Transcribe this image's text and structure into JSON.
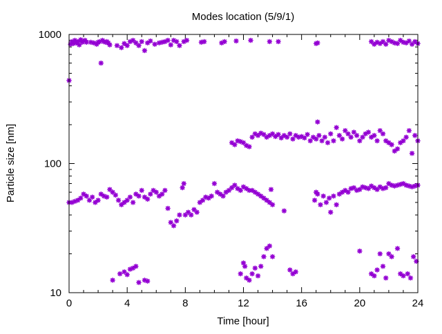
{
  "chart_data": {
    "type": "scatter",
    "title": "Modes location (5/9/1)",
    "xlabel": "Time [hour]",
    "ylabel": "Particle size [nm]",
    "xlim": [
      0,
      24
    ],
    "ylim": [
      10,
      1000
    ],
    "yscale": "log",
    "grid": false,
    "legend": "none",
    "color": "#9400d3",
    "x_ticks": [
      0,
      4,
      8,
      12,
      16,
      20,
      24
    ],
    "y_ticks": [
      10,
      100,
      1000
    ],
    "y_tick_labels": [
      "10",
      "100",
      "1000"
    ],
    "series": [
      {
        "mode": "large",
        "points": [
          [
            0.0,
            440
          ],
          [
            0.1,
            840
          ],
          [
            0.2,
            880
          ],
          [
            0.3,
            850
          ],
          [
            0.4,
            900
          ],
          [
            0.5,
            860
          ],
          [
            0.6,
            880
          ],
          [
            0.7,
            830
          ],
          [
            0.8,
            910
          ],
          [
            0.9,
            870
          ],
          [
            1.0,
            890
          ],
          [
            1.1,
            900
          ],
          [
            1.2,
            870
          ],
          [
            1.5,
            870
          ],
          [
            1.7,
            860
          ],
          [
            1.9,
            840
          ],
          [
            2.0,
            870
          ],
          [
            2.1,
            880
          ],
          [
            2.2,
            600
          ],
          [
            2.3,
            900
          ],
          [
            2.4,
            880
          ],
          [
            2.5,
            870
          ],
          [
            2.6,
            880
          ],
          [
            2.7,
            860
          ],
          [
            2.8,
            830
          ],
          [
            3.3,
            820
          ],
          [
            3.6,
            790
          ],
          [
            3.8,
            850
          ],
          [
            4.0,
            820
          ],
          [
            4.2,
            880
          ],
          [
            4.4,
            900
          ],
          [
            4.6,
            860
          ],
          [
            4.8,
            820
          ],
          [
            5.0,
            880
          ],
          [
            5.2,
            750
          ],
          [
            5.4,
            860
          ],
          [
            5.6,
            890
          ],
          [
            5.9,
            840
          ],
          [
            6.2,
            860
          ],
          [
            6.4,
            870
          ],
          [
            6.6,
            880
          ],
          [
            6.8,
            900
          ],
          [
            7.0,
            830
          ],
          [
            7.2,
            900
          ],
          [
            7.4,
            880
          ],
          [
            7.6,
            820
          ],
          [
            7.9,
            880
          ],
          [
            8.1,
            900
          ],
          [
            9.1,
            870
          ],
          [
            9.3,
            880
          ],
          [
            10.5,
            860
          ],
          [
            10.7,
            880
          ],
          [
            11.5,
            890
          ],
          [
            12.5,
            900
          ],
          [
            13.8,
            880
          ],
          [
            14.4,
            880
          ],
          [
            17.0,
            850
          ],
          [
            17.1,
            860
          ],
          [
            20.8,
            880
          ],
          [
            21.0,
            840
          ],
          [
            21.2,
            870
          ],
          [
            21.4,
            850
          ],
          [
            21.6,
            880
          ],
          [
            21.8,
            840
          ],
          [
            22.0,
            900
          ],
          [
            22.2,
            880
          ],
          [
            22.4,
            860
          ],
          [
            22.6,
            850
          ],
          [
            22.8,
            900
          ],
          [
            23.0,
            870
          ],
          [
            23.2,
            860
          ],
          [
            23.4,
            890
          ],
          [
            23.6,
            840
          ],
          [
            23.8,
            880
          ],
          [
            24.0,
            850
          ]
        ]
      },
      {
        "mode": "upper-middle",
        "points": [
          [
            11.2,
            145
          ],
          [
            11.4,
            140
          ],
          [
            11.6,
            150
          ],
          [
            11.8,
            148
          ],
          [
            12.0,
            145
          ],
          [
            12.2,
            138
          ],
          [
            12.4,
            135
          ],
          [
            12.6,
            160
          ],
          [
            12.8,
            170
          ],
          [
            13.0,
            165
          ],
          [
            13.2,
            172
          ],
          [
            13.4,
            168
          ],
          [
            13.6,
            160
          ],
          [
            13.8,
            165
          ],
          [
            14.0,
            170
          ],
          [
            14.2,
            162
          ],
          [
            14.4,
            168
          ],
          [
            14.6,
            158
          ],
          [
            14.8,
            165
          ],
          [
            15.0,
            160
          ],
          [
            15.2,
            170
          ],
          [
            15.4,
            155
          ],
          [
            15.6,
            165
          ],
          [
            15.8,
            160
          ],
          [
            16.0,
            162
          ],
          [
            16.2,
            158
          ],
          [
            16.4,
            168
          ],
          [
            16.6,
            150
          ],
          [
            16.8,
            160
          ],
          [
            17.0,
            155
          ],
          [
            17.1,
            210
          ],
          [
            17.2,
            165
          ],
          [
            17.4,
            150
          ],
          [
            17.6,
            160
          ],
          [
            17.8,
            145
          ],
          [
            18.0,
            170
          ],
          [
            18.2,
            150
          ],
          [
            18.4,
            190
          ],
          [
            18.6,
            165
          ],
          [
            18.8,
            155
          ],
          [
            19.0,
            180
          ],
          [
            19.2,
            170
          ],
          [
            19.4,
            160
          ],
          [
            19.6,
            175
          ],
          [
            19.8,
            165
          ],
          [
            20.0,
            150
          ],
          [
            20.2,
            160
          ],
          [
            20.4,
            170
          ],
          [
            20.6,
            175
          ],
          [
            20.8,
            160
          ],
          [
            21.0,
            165
          ],
          [
            21.2,
            150
          ],
          [
            21.4,
            180
          ],
          [
            21.6,
            170
          ],
          [
            21.8,
            150
          ],
          [
            22.0,
            145
          ],
          [
            22.2,
            140
          ],
          [
            22.4,
            125
          ],
          [
            22.6,
            130
          ],
          [
            22.8,
            145
          ],
          [
            23.0,
            150
          ],
          [
            23.2,
            160
          ],
          [
            23.4,
            180
          ],
          [
            23.6,
            120
          ],
          [
            23.8,
            165
          ],
          [
            24.0,
            150
          ]
        ]
      },
      {
        "mode": "lower-middle",
        "points": [
          [
            0.0,
            50
          ],
          [
            0.2,
            50
          ],
          [
            0.4,
            51
          ],
          [
            0.6,
            52
          ],
          [
            0.8,
            54
          ],
          [
            1.0,
            58
          ],
          [
            1.2,
            56
          ],
          [
            1.4,
            52
          ],
          [
            1.6,
            55
          ],
          [
            1.8,
            50
          ],
          [
            2.0,
            52
          ],
          [
            2.2,
            58
          ],
          [
            2.4,
            56
          ],
          [
            2.6,
            55
          ],
          [
            2.8,
            63
          ],
          [
            3.0,
            60
          ],
          [
            3.2,
            57
          ],
          [
            3.4,
            52
          ],
          [
            3.6,
            48
          ],
          [
            3.8,
            50
          ],
          [
            4.0,
            52
          ],
          [
            4.2,
            55
          ],
          [
            4.4,
            50
          ],
          [
            4.6,
            58
          ],
          [
            4.8,
            56
          ],
          [
            5.0,
            62
          ],
          [
            5.2,
            55
          ],
          [
            5.4,
            53
          ],
          [
            5.6,
            58
          ],
          [
            5.8,
            62
          ],
          [
            6.0,
            60
          ],
          [
            6.2,
            56
          ],
          [
            6.4,
            58
          ],
          [
            6.6,
            62
          ],
          [
            6.8,
            45
          ],
          [
            7.0,
            35
          ],
          [
            7.2,
            33
          ],
          [
            7.4,
            36
          ],
          [
            7.6,
            40
          ],
          [
            7.8,
            65
          ],
          [
            7.9,
            70
          ],
          [
            8.0,
            40
          ],
          [
            8.2,
            42
          ],
          [
            8.4,
            40
          ],
          [
            8.6,
            44
          ],
          [
            8.8,
            42
          ],
          [
            9.0,
            50
          ],
          [
            9.2,
            52
          ],
          [
            9.4,
            55
          ],
          [
            9.6,
            54
          ],
          [
            9.8,
            56
          ],
          [
            10.0,
            70
          ],
          [
            10.2,
            60
          ],
          [
            10.4,
            58
          ],
          [
            10.6,
            56
          ],
          [
            10.8,
            60
          ],
          [
            11.0,
            62
          ],
          [
            11.2,
            65
          ],
          [
            11.4,
            68
          ],
          [
            11.6,
            64
          ],
          [
            11.8,
            62
          ],
          [
            12.0,
            66
          ],
          [
            12.2,
            64
          ],
          [
            12.4,
            62
          ],
          [
            12.6,
            62
          ],
          [
            12.8,
            60
          ],
          [
            13.0,
            58
          ],
          [
            13.2,
            56
          ],
          [
            13.4,
            54
          ],
          [
            13.6,
            52
          ],
          [
            13.8,
            50
          ],
          [
            14.0,
            48
          ],
          [
            13.9,
            63
          ],
          [
            14.8,
            43
          ],
          [
            16.9,
            52
          ],
          [
            17.0,
            60
          ],
          [
            17.1,
            58
          ],
          [
            17.3,
            48
          ],
          [
            17.5,
            56
          ],
          [
            17.7,
            50
          ],
          [
            17.9,
            54
          ],
          [
            18.0,
            42
          ],
          [
            18.2,
            56
          ],
          [
            18.4,
            48
          ],
          [
            18.6,
            58
          ],
          [
            18.8,
            60
          ],
          [
            19.0,
            62
          ],
          [
            19.2,
            60
          ],
          [
            19.4,
            64
          ],
          [
            19.6,
            65
          ],
          [
            19.8,
            62
          ],
          [
            20.0,
            63
          ],
          [
            20.2,
            66
          ],
          [
            20.4,
            65
          ],
          [
            20.6,
            64
          ],
          [
            20.8,
            67
          ],
          [
            21.0,
            65
          ],
          [
            21.2,
            63
          ],
          [
            21.4,
            66
          ],
          [
            21.6,
            64
          ],
          [
            21.8,
            65
          ],
          [
            22.0,
            70
          ],
          [
            22.2,
            68
          ],
          [
            22.4,
            67
          ],
          [
            22.6,
            68
          ],
          [
            22.8,
            69
          ],
          [
            23.0,
            70
          ],
          [
            23.2,
            68
          ],
          [
            23.4,
            67
          ],
          [
            23.6,
            66
          ],
          [
            23.8,
            67
          ],
          [
            24.0,
            68
          ]
        ]
      },
      {
        "mode": "small",
        "points": [
          [
            3.0,
            12.5
          ],
          [
            3.5,
            14
          ],
          [
            3.8,
            14.5
          ],
          [
            4.0,
            13.8
          ],
          [
            4.2,
            15.2
          ],
          [
            4.4,
            15.5
          ],
          [
            4.6,
            16
          ],
          [
            4.8,
            12
          ],
          [
            5.2,
            12.5
          ],
          [
            5.4,
            12.3
          ],
          [
            11.8,
            14
          ],
          [
            12.0,
            17
          ],
          [
            12.1,
            16
          ],
          [
            12.2,
            13
          ],
          [
            12.4,
            12.5
          ],
          [
            12.6,
            14
          ],
          [
            12.8,
            15.5
          ],
          [
            13.0,
            13.5
          ],
          [
            13.2,
            16
          ],
          [
            13.4,
            19
          ],
          [
            13.6,
            22
          ],
          [
            13.8,
            23
          ],
          [
            14.0,
            19
          ],
          [
            15.2,
            15
          ],
          [
            15.4,
            14
          ],
          [
            15.6,
            14.5
          ],
          [
            20.0,
            21
          ],
          [
            20.8,
            14
          ],
          [
            21.0,
            13.5
          ],
          [
            21.2,
            15
          ],
          [
            21.4,
            20
          ],
          [
            21.6,
            16
          ],
          [
            21.8,
            13
          ],
          [
            22.0,
            20
          ],
          [
            22.2,
            19
          ],
          [
            22.6,
            22
          ],
          [
            22.8,
            14
          ],
          [
            23.0,
            13.5
          ],
          [
            23.3,
            14
          ],
          [
            23.5,
            13
          ],
          [
            23.7,
            19
          ],
          [
            23.9,
            17.5
          ]
        ]
      }
    ]
  }
}
